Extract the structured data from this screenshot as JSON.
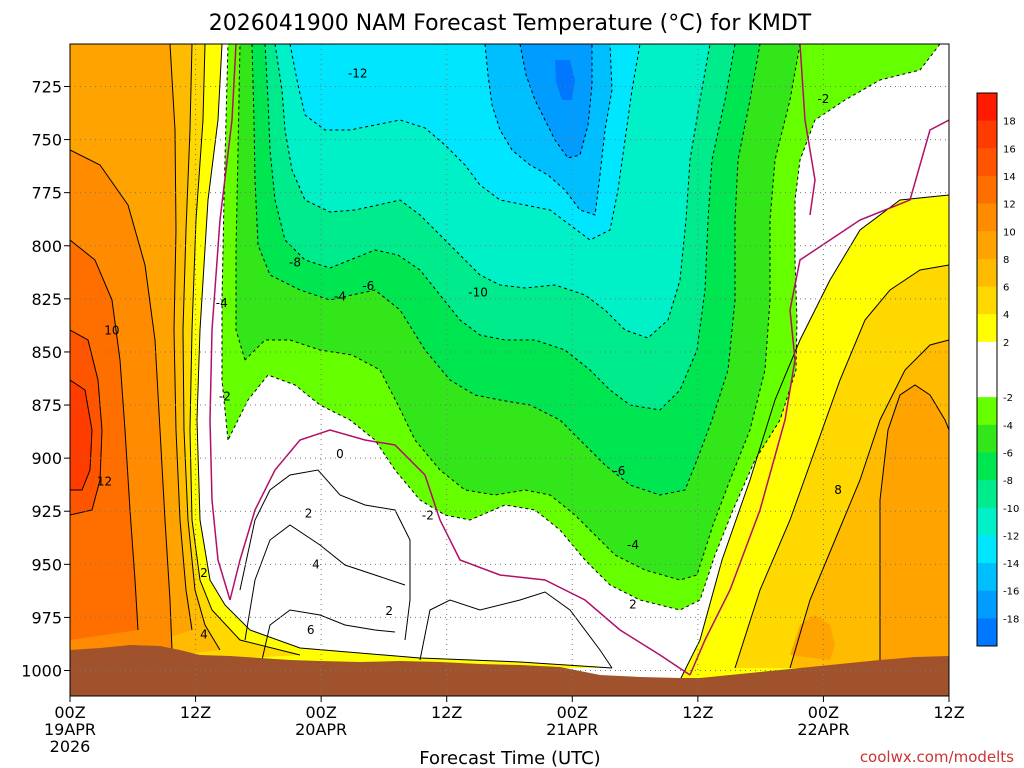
{
  "chart_data": {
    "type": "heatmap",
    "title": "2026041900 NAM Forecast Temperature (°C) for KMDT",
    "xlabel": "Forecast Time (UTC)",
    "ylabel": "",
    "y_axis": {
      "scale": "pressure",
      "ylim": [
        1012,
        705
      ],
      "ticks": [
        725,
        750,
        775,
        800,
        825,
        850,
        875,
        900,
        925,
        950,
        975,
        1000
      ]
    },
    "x_axis": {
      "xlim_hours": [
        0,
        84
      ],
      "ticks": [
        {
          "hour": 0,
          "lines": [
            "00Z",
            "19APR",
            "2026"
          ]
        },
        {
          "hour": 12,
          "lines": [
            "12Z"
          ]
        },
        {
          "hour": 24,
          "lines": [
            "00Z",
            "20APR"
          ]
        },
        {
          "hour": 36,
          "lines": [
            "12Z"
          ]
        },
        {
          "hour": 48,
          "lines": [
            "00Z",
            "21APR"
          ]
        },
        {
          "hour": 60,
          "lines": [
            "12Z"
          ]
        },
        {
          "hour": 72,
          "lines": [
            "00Z",
            "22APR"
          ]
        },
        {
          "hour": 84,
          "lines": [
            "12Z"
          ]
        }
      ]
    },
    "grid": true,
    "colorbar": {
      "placement": "right",
      "labels": [
        "18",
        "16",
        "14",
        "12",
        "10",
        "8",
        "6",
        "4",
        "2",
        "-2",
        "-4",
        "-6",
        "-8",
        "-10",
        "-12",
        "-14",
        "-16",
        "-18"
      ],
      "bands": [
        {
          "from": 20,
          "to": 18,
          "color": "#ff1a00"
        },
        {
          "from": 18,
          "to": 16,
          "color": "#ff3c00"
        },
        {
          "from": 16,
          "to": 14,
          "color": "#ff5500"
        },
        {
          "from": 14,
          "to": 12,
          "color": "#ff6f00"
        },
        {
          "from": 12,
          "to": 10,
          "color": "#ff8c00"
        },
        {
          "from": 10,
          "to": 8,
          "color": "#ffa300"
        },
        {
          "from": 8,
          "to": 6,
          "color": "#ffbb00"
        },
        {
          "from": 6,
          "to": 4,
          "color": "#ffd800"
        },
        {
          "from": 4,
          "to": 2,
          "color": "#ffff00"
        },
        {
          "from": 2,
          "to": -2,
          "color": "#ffffff"
        },
        {
          "from": -2,
          "to": -4,
          "color": "#66ff00"
        },
        {
          "from": -4,
          "to": -6,
          "color": "#33e61a"
        },
        {
          "from": -6,
          "to": -8,
          "color": "#00e650"
        },
        {
          "from": -8,
          "to": -10,
          "color": "#00eb8c"
        },
        {
          "from": -10,
          "to": -12,
          "color": "#00f0c8"
        },
        {
          "from": -12,
          "to": -14,
          "color": "#00e6ff"
        },
        {
          "from": -14,
          "to": -16,
          "color": "#00bfff"
        },
        {
          "from": -16,
          "to": -18,
          "color": "#009cff"
        },
        {
          "from": -18,
          "to": -20,
          "color": "#0077ff"
        }
      ]
    },
    "contour_labels": [
      {
        "text": "-12",
        "hour": 27.5,
        "p": 719
      },
      {
        "text": "-2",
        "hour": 72,
        "p": 731
      },
      {
        "text": "-8",
        "hour": 21.5,
        "p": 808
      },
      {
        "text": "-6",
        "hour": 28.5,
        "p": 819
      },
      {
        "text": "-4",
        "hour": 14.5,
        "p": 827
      },
      {
        "text": "-4",
        "hour": 25.8,
        "p": 824
      },
      {
        "text": "-10",
        "hour": 39,
        "p": 822
      },
      {
        "text": "10",
        "hour": 4,
        "p": 840
      },
      {
        "text": "-2",
        "hour": 14.8,
        "p": 871
      },
      {
        "text": "0",
        "hour": 25.8,
        "p": 898
      },
      {
        "text": "-6",
        "hour": 52.5,
        "p": 906
      },
      {
        "text": "12",
        "hour": 3.3,
        "p": 911
      },
      {
        "text": "2",
        "hour": 22.8,
        "p": 926
      },
      {
        "text": "-2",
        "hour": 34.2,
        "p": 927
      },
      {
        "text": "-4",
        "hour": 53.8,
        "p": 941
      },
      {
        "text": "4",
        "hour": 23.5,
        "p": 950
      },
      {
        "text": "2",
        "hour": 12.8,
        "p": 954
      },
      {
        "text": "2",
        "hour": 30.5,
        "p": 972
      },
      {
        "text": "2",
        "hour": 53.8,
        "p": 969
      },
      {
        "text": "6",
        "hour": 23,
        "p": 981
      },
      {
        "text": "4",
        "hour": 12.8,
        "p": 983
      },
      {
        "text": "8",
        "hour": 73.4,
        "p": 915
      }
    ],
    "terrain": {
      "label": "",
      "surface_pressure_approx": 1000
    },
    "watermark": "coolwx.com/modelts"
  }
}
